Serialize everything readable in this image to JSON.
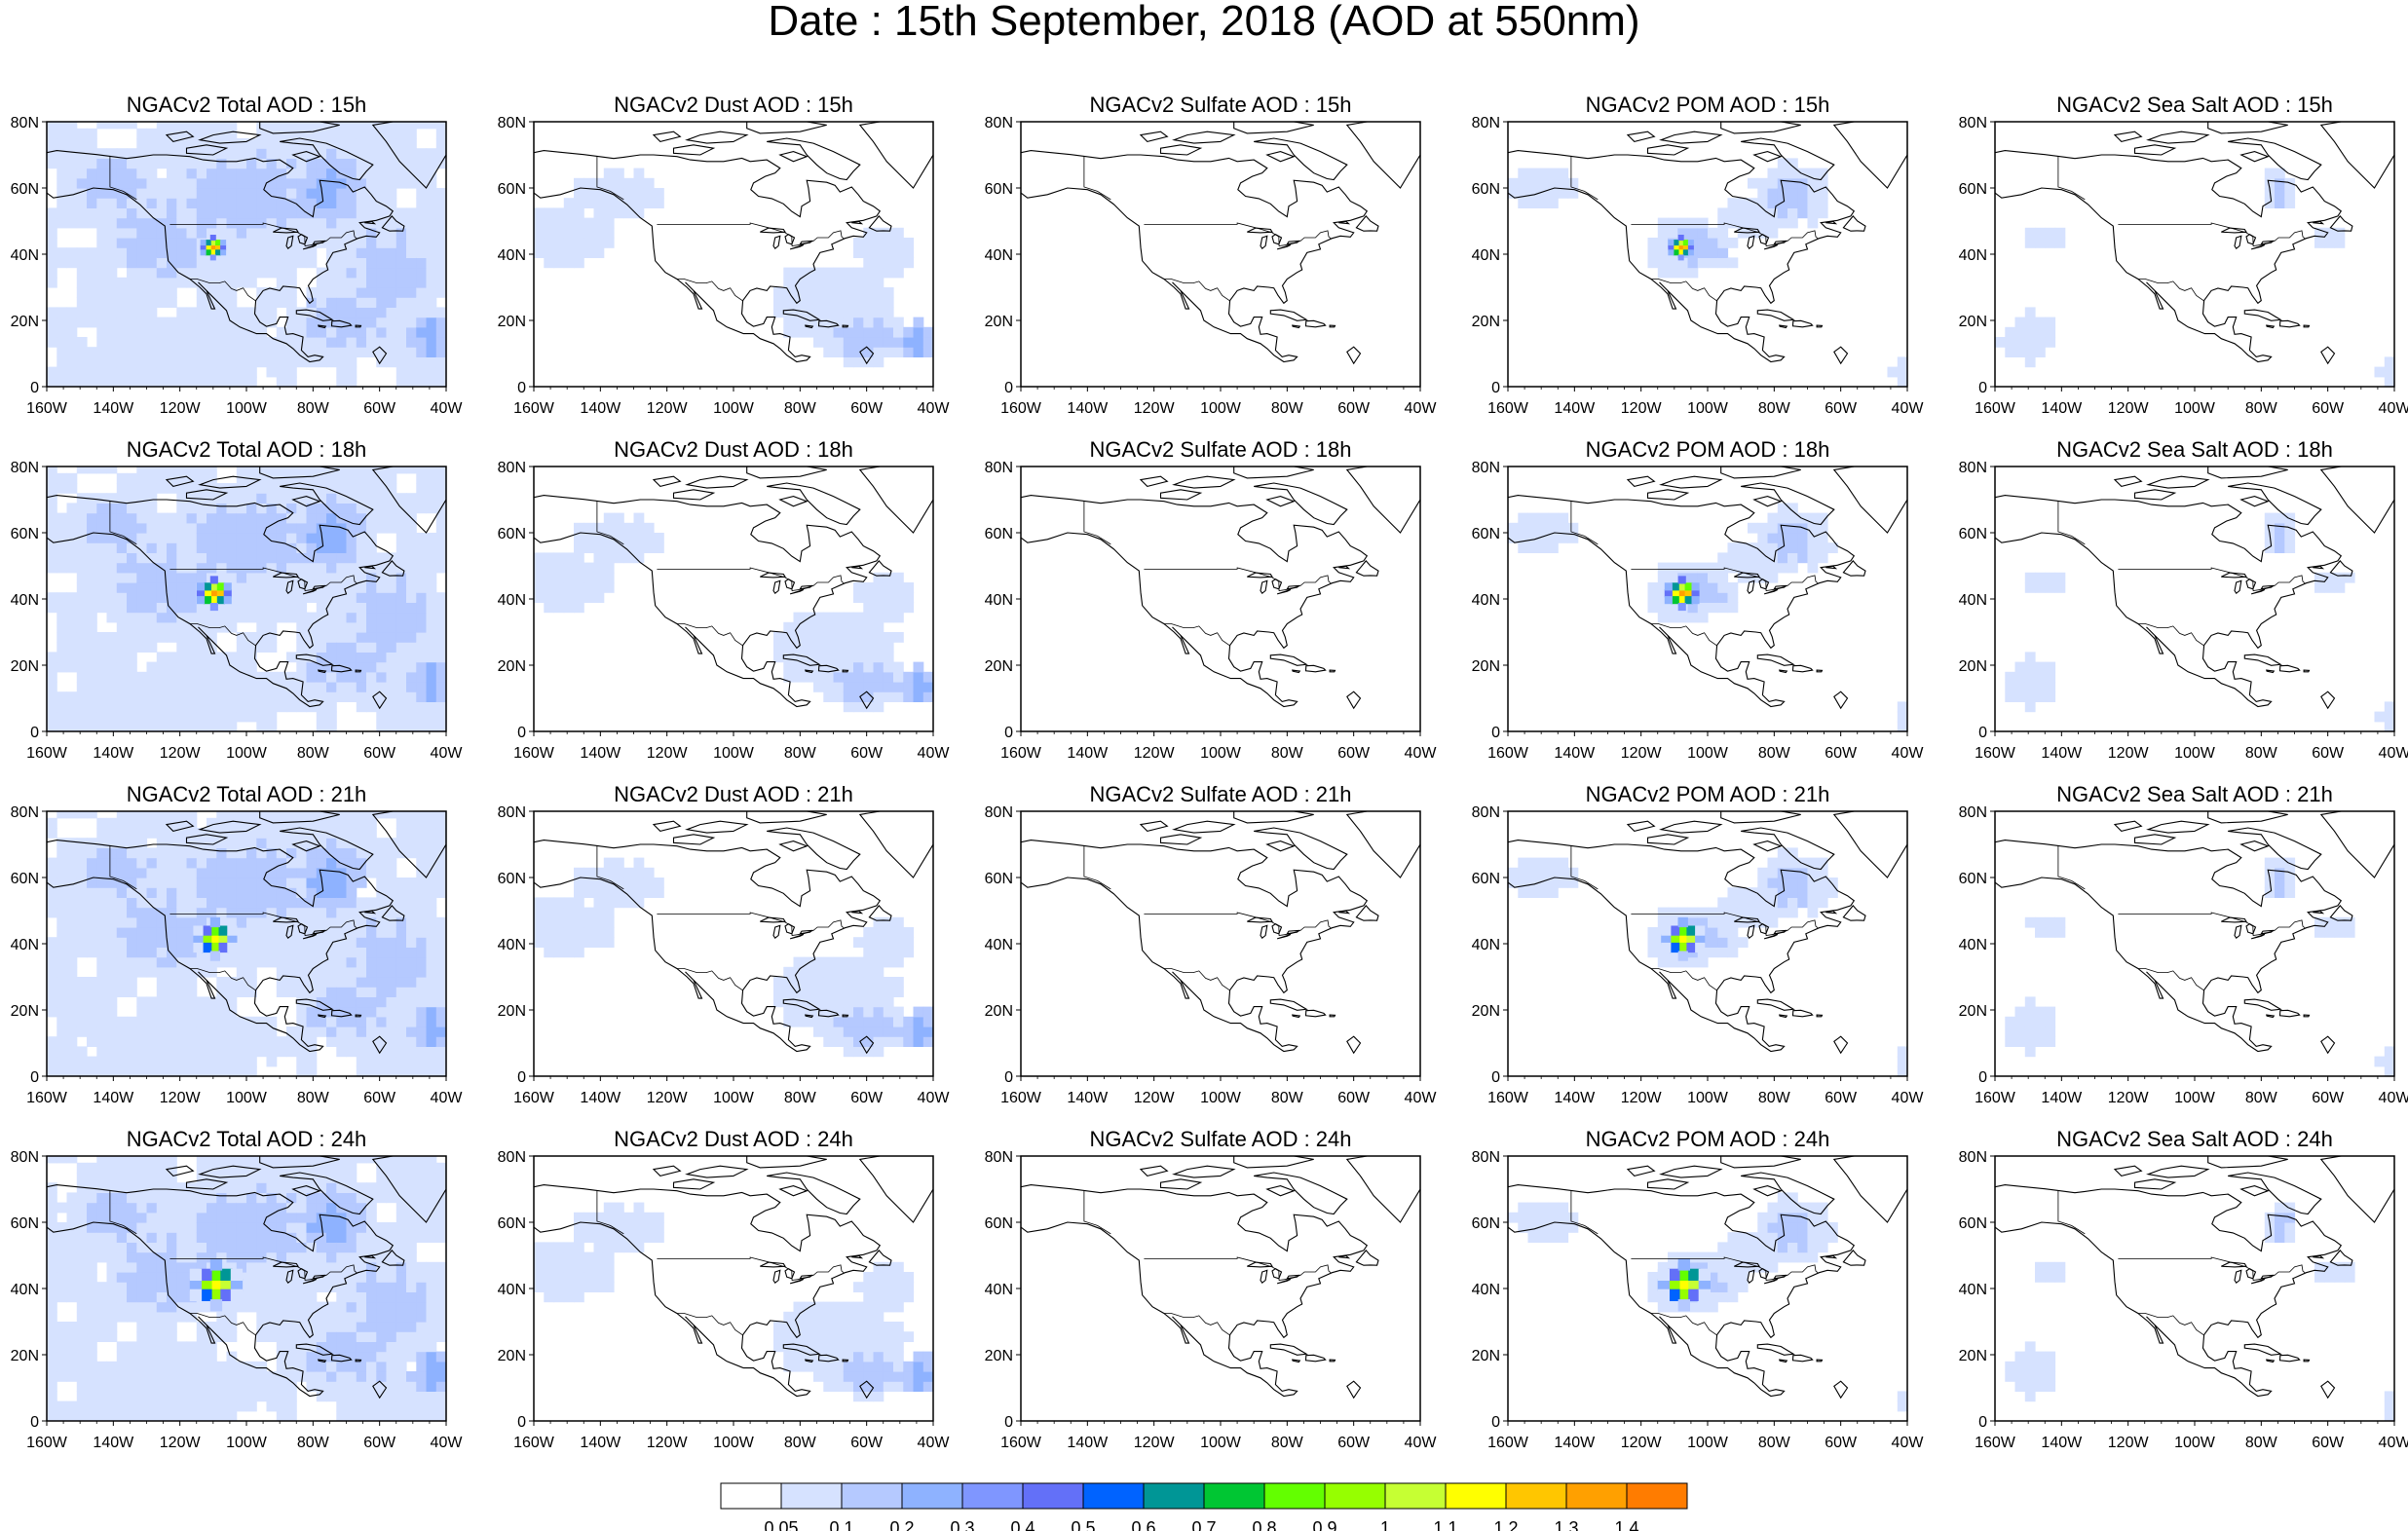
{
  "title": "Date : 15th September, 2018 (AOD at 550nm)",
  "x_ticks": [
    "160W",
    "140W",
    "120W",
    "100W",
    "80W",
    "60W",
    "40W"
  ],
  "y_ticks": [
    "80N",
    "60N",
    "40N",
    "20N",
    "0"
  ],
  "rows": [
    {
      "titles": [
        "NGACv2 Total AOD : 15h",
        "NGACv2 Dust AOD : 15h",
        "NGACv2 Sulfate AOD : 15h",
        "NGACv2 POM AOD : 15h",
        "NGACv2 Sea Salt AOD : 15h"
      ]
    },
    {
      "titles": [
        "NGACv2 Total AOD : 18h",
        "NGACv2 Dust AOD : 18h",
        "NGACv2 Sulfate AOD : 18h",
        "NGACv2 POM AOD : 18h",
        "NGACv2 Sea Salt AOD : 18h"
      ]
    },
    {
      "titles": [
        "NGACv2 Total AOD : 21h",
        "NGACv2 Dust AOD : 21h",
        "NGACv2 Sulfate AOD : 21h",
        "NGACv2 POM AOD : 21h",
        "NGACv2 Sea Salt AOD : 21h"
      ]
    },
    {
      "titles": [
        "NGACv2 Total AOD : 24h",
        "NGACv2 Dust AOD : 24h",
        "NGACv2 Sulfate AOD : 24h",
        "NGACv2 POM AOD : 24h",
        "NGACv2 Sea Salt  AOD : 24h"
      ]
    }
  ],
  "colorbar": {
    "colors": [
      "#ffffff",
      "#d6e2ff",
      "#b5c9ff",
      "#8eb2ff",
      "#7f96ff",
      "#6370f8",
      "#0063ff",
      "#009696",
      "#00c633",
      "#63ff00",
      "#96ff00",
      "#c6ff33",
      "#ffff00",
      "#ffc600",
      "#ffa000",
      "#ff7c00",
      "#ff1900"
    ],
    "labels": [
      "0.05",
      "0.1",
      "0.2",
      "0.3",
      "0.4",
      "0.5",
      "0.6",
      "0.7",
      "0.8",
      "0.9",
      "1",
      "1.1",
      "1.2",
      "1.3",
      "1.4"
    ]
  },
  "fields": {
    "total": {
      "blobs": [
        {
          "lon": -125,
          "lat": 45,
          "rlon": 20,
          "rlat": 16,
          "level": 2
        },
        {
          "lon": -100,
          "lat": 58,
          "rlon": 28,
          "rlat": 18,
          "level": 2
        },
        {
          "lon": -75,
          "lat": 60,
          "rlon": 10,
          "rlat": 10,
          "level": 3
        },
        {
          "lon": -58,
          "lat": 35,
          "rlon": 18,
          "rlat": 18,
          "level": 2
        },
        {
          "lon": -70,
          "lat": 20,
          "rlon": 18,
          "rlat": 12,
          "level": 2
        },
        {
          "lon": -45,
          "lat": 15,
          "rlon": 7,
          "rlat": 7,
          "level": 3
        },
        {
          "lon": -140,
          "lat": 62,
          "rlon": 16,
          "rlat": 10,
          "level": 2
        },
        {
          "lon": -120,
          "lat": 10,
          "rlon": 30,
          "rlat": 10,
          "level": 1
        },
        {
          "lon": -100,
          "lat": 40,
          "rlon": 20,
          "rlat": 8,
          "level": 1
        }
      ],
      "hotspot": {
        "lon": -110,
        "lat": 42
      },
      "base": 1
    },
    "dust": {
      "blobs": [
        {
          "lon": -150,
          "lat": 45,
          "rlon": 14,
          "rlat": 9,
          "level": 1
        },
        {
          "lon": -135,
          "lat": 58,
          "rlon": 14,
          "rlat": 7,
          "level": 1
        },
        {
          "lon": -70,
          "lat": 25,
          "rlon": 20,
          "rlat": 12,
          "level": 1
        },
        {
          "lon": -55,
          "lat": 40,
          "rlon": 8,
          "rlat": 8,
          "level": 1
        },
        {
          "lon": -60,
          "lat": 15,
          "rlon": 14,
          "rlat": 8,
          "level": 2
        },
        {
          "lon": -45,
          "lat": 14,
          "rlon": 7,
          "rlat": 6,
          "level": 3
        }
      ],
      "base": 0
    },
    "sulfate": {
      "blobs": [],
      "base": 0
    },
    "pom": {
      "blobs": [
        {
          "lon": -105,
          "lat": 42,
          "rlon": 14,
          "rlat": 9,
          "level": 2
        },
        {
          "lon": -75,
          "lat": 58,
          "rlon": 12,
          "rlat": 10,
          "level": 2
        },
        {
          "lon": -85,
          "lat": 52,
          "rlon": 14,
          "rlat": 6,
          "level": 1
        },
        {
          "lon": -150,
          "lat": 60,
          "rlon": 10,
          "rlat": 6,
          "level": 1
        },
        {
          "lon": -40,
          "lat": 5,
          "rlon": 5,
          "rlat": 4,
          "level": 1
        }
      ],
      "hotspot": {
        "lon": -108,
        "lat": 42
      },
      "base": 0
    },
    "seasalt": {
      "blobs": [
        {
          "lon": -75,
          "lat": 60,
          "rlon": 5,
          "rlat": 7,
          "level": 2
        },
        {
          "lon": -60,
          "lat": 45,
          "rlon": 6,
          "rlat": 4,
          "level": 1
        },
        {
          "lon": -150,
          "lat": 15,
          "rlon": 8,
          "rlat": 7,
          "level": 1
        },
        {
          "lon": -145,
          "lat": 45,
          "rlon": 6,
          "rlat": 3,
          "level": 1
        },
        {
          "lon": -40,
          "lat": 5,
          "rlon": 6,
          "rlat": 4,
          "level": 1
        }
      ],
      "base": 0
    }
  },
  "panel_fields": [
    "total",
    "dust",
    "sulfate",
    "pom",
    "seasalt"
  ],
  "map_extent": {
    "lon": [
      -160,
      -40
    ],
    "lat": [
      0,
      80
    ]
  }
}
